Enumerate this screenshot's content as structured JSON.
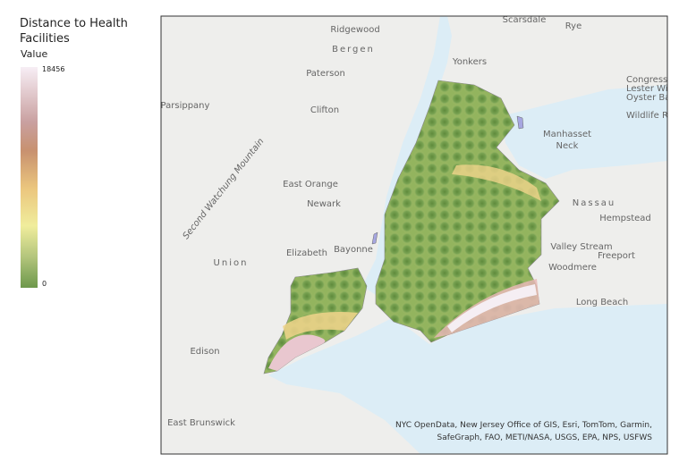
{
  "legend": {
    "title": "Distance to Health Facilities",
    "field": "Value",
    "max": 18456,
    "min": 0
  },
  "map_labels": [
    "Ridgewood",
    "Bergen",
    "Scarsdale",
    "Rye",
    "Yonkers",
    "Paterson",
    "Parsippany",
    "Clifton",
    "Manhasset",
    "Neck",
    "East Orange",
    "Newark",
    "Elizabeth",
    "Bayonne",
    "Union",
    "Valley Stream",
    "Nassau",
    "Hempstead",
    "Freeport",
    "Woodmere",
    "Long Beach",
    "Edison",
    "East Brunswick",
    "Second Watchung Mountain",
    "Congressional",
    "Lester Wil",
    "Oyster Ba",
    "Wildlife Ref"
  ],
  "attribution": [
    "NYC OpenData, New Jersey Office of GIS, Esri, TomTom, Garmin,",
    "SafeGraph, FAO, METI/NASA, USGS, EPA, NPS, USFWS"
  ]
}
